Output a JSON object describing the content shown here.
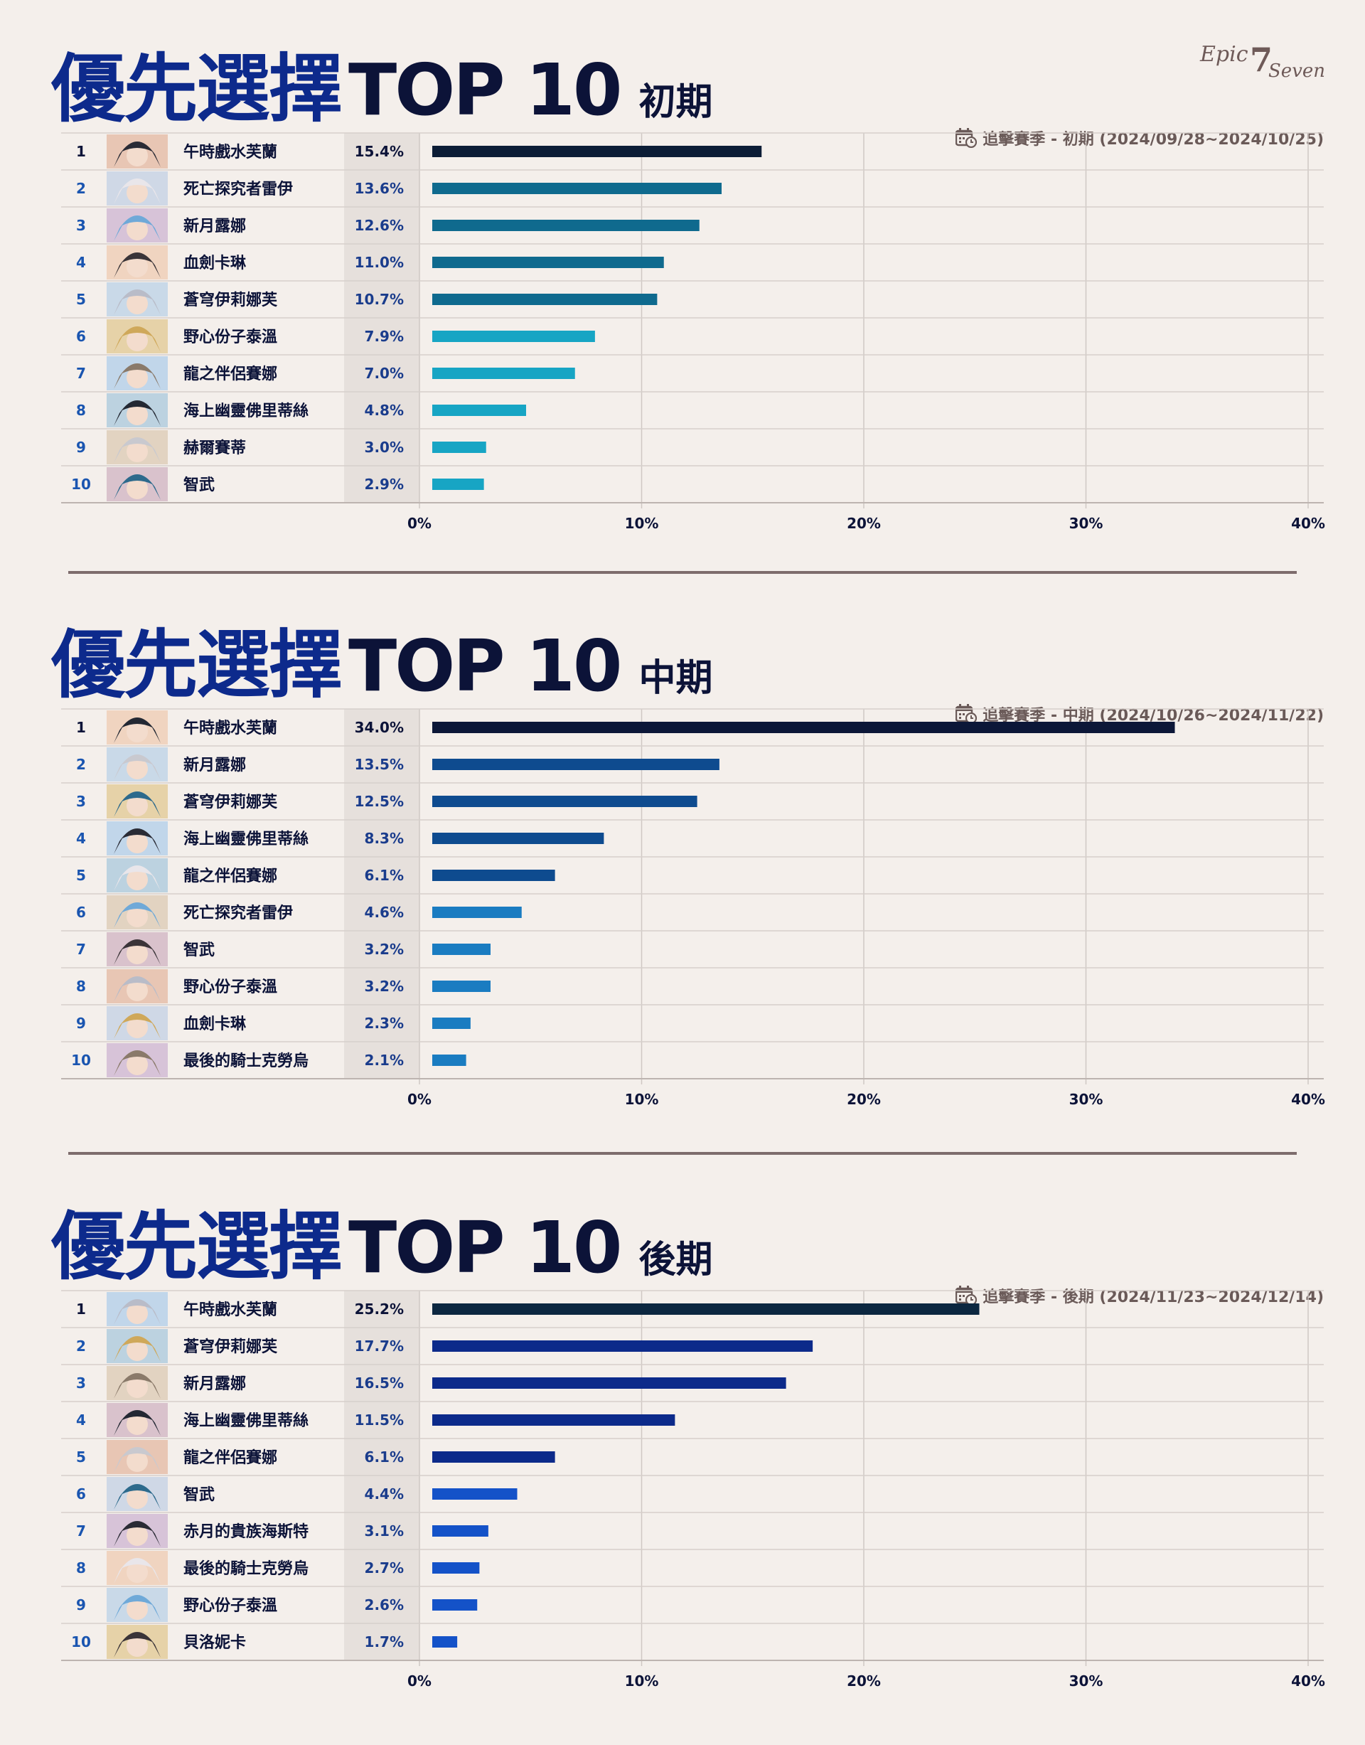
{
  "brand": {
    "logo_text": "Epic7Seven"
  },
  "panels": [
    {
      "title_cn": "優先選擇",
      "title_top": "TOP 10",
      "phase": "初期",
      "season_label": "追擊賽季 - 初期 (2024/09/28~2024/10/25)",
      "chart_data": {
        "type": "bar",
        "orientation": "horizontal",
        "ranks": [
          "1",
          "2",
          "3",
          "4",
          "5",
          "6",
          "7",
          "8",
          "9",
          "10"
        ],
        "categories": [
          "午時戲水芙蘭",
          "死亡探究者雷伊",
          "新月露娜",
          "血劍卡琳",
          "蒼穹伊莉娜芙",
          "野心份子泰溫",
          "龍之伴侶賽娜",
          "海上幽靈佛里蒂絲",
          "赫爾賽蒂",
          "智武"
        ],
        "values": [
          15.4,
          13.6,
          12.6,
          11.0,
          10.7,
          7.9,
          7.0,
          4.8,
          3.0,
          2.9
        ],
        "value_labels": [
          "15.4%",
          "13.6%",
          "12.6%",
          "11.0%",
          "10.7%",
          "7.9%",
          "7.0%",
          "4.8%",
          "3.0%",
          "2.9%"
        ],
        "colors": [
          "#0c1d36",
          "#0f6a8e",
          "#0f6a8e",
          "#0f6a8e",
          "#0f6a8e",
          "#17a5c4",
          "#17a5c4",
          "#17a5c4",
          "#17a5c4",
          "#17a5c4"
        ],
        "xlim": [
          0,
          40
        ],
        "xticks": [
          "0%",
          "10%",
          "20%",
          "30%",
          "40%"
        ],
        "grid": true
      }
    },
    {
      "title_cn": "優先選擇",
      "title_top": "TOP 10",
      "phase": "中期",
      "season_label": "追擊賽季 - 中期 (2024/10/26~2024/11/22)",
      "chart_data": {
        "type": "bar",
        "orientation": "horizontal",
        "ranks": [
          "1",
          "2",
          "3",
          "4",
          "5",
          "6",
          "7",
          "8",
          "9",
          "10"
        ],
        "categories": [
          "午時戲水芙蘭",
          "新月露娜",
          "蒼穹伊莉娜芙",
          "海上幽靈佛里蒂絲",
          "龍之伴侶賽娜",
          "死亡探究者雷伊",
          "智武",
          "野心份子泰溫",
          "血劍卡琳",
          "最後的騎士克勞烏"
        ],
        "values": [
          34.0,
          13.5,
          12.5,
          8.3,
          6.1,
          4.6,
          3.2,
          3.2,
          2.3,
          2.1
        ],
        "value_labels": [
          "34.0%",
          "13.5%",
          "12.5%",
          "8.3%",
          "6.1%",
          "4.6%",
          "3.2%",
          "3.2%",
          "2.3%",
          "2.1%"
        ],
        "colors": [
          "#0c1738",
          "#0e4b8f",
          "#0e4b8f",
          "#0e4b8f",
          "#0e4b8f",
          "#1a7cc1",
          "#1a7cc1",
          "#1a7cc1",
          "#1a7cc1",
          "#1a7cc1"
        ],
        "xlim": [
          0,
          40
        ],
        "xticks": [
          "0%",
          "10%",
          "20%",
          "30%",
          "40%"
        ],
        "grid": true
      }
    },
    {
      "title_cn": "優先選擇",
      "title_top": "TOP 10",
      "phase": "後期",
      "season_label": "追擊賽季 - 後期 (2024/11/23~2024/12/14)",
      "chart_data": {
        "type": "bar",
        "orientation": "horizontal",
        "ranks": [
          "1",
          "2",
          "3",
          "4",
          "5",
          "6",
          "7",
          "8",
          "9",
          "10"
        ],
        "categories": [
          "午時戲水芙蘭",
          "蒼穹伊莉娜芙",
          "新月露娜",
          "海上幽靈佛里蒂絲",
          "龍之伴侶賽娜",
          "智武",
          "赤月的貴族海斯特",
          "最後的騎士克勞烏",
          "野心份子泰溫",
          "貝洛妮卡"
        ],
        "values": [
          25.2,
          17.7,
          16.5,
          11.5,
          6.1,
          4.4,
          3.1,
          2.7,
          2.6,
          1.7
        ],
        "value_labels": [
          "25.2%",
          "17.7%",
          "16.5%",
          "11.5%",
          "6.1%",
          "4.4%",
          "3.1%",
          "2.7%",
          "2.6%",
          "1.7%"
        ],
        "colors": [
          "#0c2740",
          "#0c2a8a",
          "#0c2a8a",
          "#0c2a8a",
          "#0c2a8a",
          "#1452c8",
          "#1452c8",
          "#1452c8",
          "#1452c8",
          "#1452c8"
        ],
        "xlim": [
          0,
          40
        ],
        "xticks": [
          "0%",
          "10%",
          "20%",
          "30%",
          "40%"
        ],
        "grid": true
      }
    }
  ]
}
